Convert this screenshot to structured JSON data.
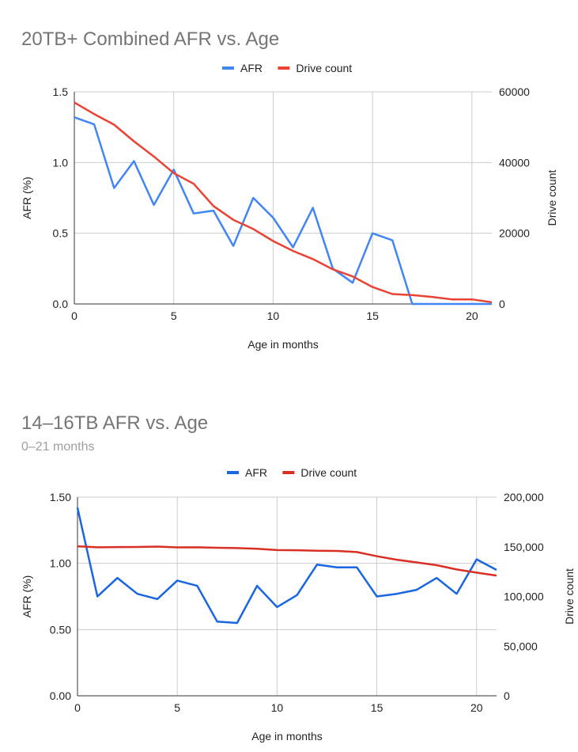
{
  "chart_data": [
    {
      "type": "line",
      "title": "20TB+ Combined AFR vs. Age",
      "subtitle": "",
      "xlabel": "Age in months",
      "ylabel": "AFR (%)",
      "y2label": "Drive count",
      "xlim": [
        0,
        21
      ],
      "ylim": [
        0,
        1.5
      ],
      "y2lim": [
        0,
        60000
      ],
      "x_ticks": [
        "0",
        "5",
        "10",
        "15",
        "20"
      ],
      "y_ticks": [
        "0.0",
        "0.5",
        "1.0",
        "1.5"
      ],
      "y2_ticks": [
        "0",
        "20000",
        "40000",
        "60000"
      ],
      "grid": true,
      "legend_position": "top",
      "x": [
        0,
        1,
        2,
        3,
        4,
        5,
        6,
        7,
        8,
        9,
        10,
        11,
        12,
        13,
        14,
        15,
        16,
        17,
        18,
        19,
        20,
        21
      ],
      "series": [
        {
          "name": "AFR",
          "axis": "left",
          "color": "#4285f4",
          "values": [
            1.32,
            1.27,
            0.82,
            1.01,
            0.7,
            0.95,
            0.64,
            0.66,
            0.41,
            0.75,
            0.61,
            0.4,
            0.68,
            0.25,
            0.15,
            0.5,
            0.45,
            0.0,
            0.0,
            0.0,
            0.0,
            0.0
          ]
        },
        {
          "name": "Drive count",
          "axis": "right",
          "color": "#ea4335",
          "values": [
            57000,
            53700,
            50700,
            46000,
            41700,
            37000,
            34000,
            27700,
            23800,
            21200,
            17800,
            15000,
            12700,
            9800,
            7800,
            4800,
            2800,
            2500,
            2000,
            1300,
            1300,
            500
          ]
        }
      ]
    },
    {
      "type": "line",
      "title": "14–16TB AFR vs. Age",
      "subtitle": "0–21 months",
      "xlabel": "Age in months",
      "ylabel": "AFR (%)",
      "y2label": "Drive count",
      "xlim": [
        0,
        21
      ],
      "ylim": [
        0,
        1.5
      ],
      "y2lim": [
        0,
        200000
      ],
      "x_ticks": [
        "0",
        "5",
        "10",
        "15",
        "20"
      ],
      "y_ticks": [
        "0.00",
        "0.50",
        "1.00",
        "1.50"
      ],
      "y2_ticks": [
        "0",
        "50,000",
        "100,000",
        "150,000",
        "200,000"
      ],
      "grid": true,
      "legend_position": "top",
      "x": [
        0,
        1,
        2,
        3,
        4,
        5,
        6,
        7,
        8,
        9,
        10,
        11,
        12,
        13,
        14,
        15,
        16,
        17,
        18,
        19,
        20,
        21
      ],
      "series": [
        {
          "name": "AFR",
          "axis": "left",
          "color": "#1a66e0",
          "values": [
            1.42,
            0.75,
            0.89,
            0.77,
            0.73,
            0.87,
            0.83,
            0.56,
            0.55,
            0.83,
            0.67,
            0.76,
            0.99,
            0.97,
            0.97,
            0.75,
            0.77,
            0.8,
            0.89,
            0.77,
            1.03,
            0.95
          ]
        },
        {
          "name": "Drive count",
          "axis": "right",
          "color": "#d93025",
          "values": [
            150500,
            149500,
            149700,
            149800,
            150200,
            149400,
            149500,
            149000,
            148700,
            148000,
            146700,
            146500,
            146000,
            145800,
            144700,
            140500,
            137000,
            134300,
            131500,
            127200,
            124000,
            121000
          ]
        }
      ]
    }
  ]
}
